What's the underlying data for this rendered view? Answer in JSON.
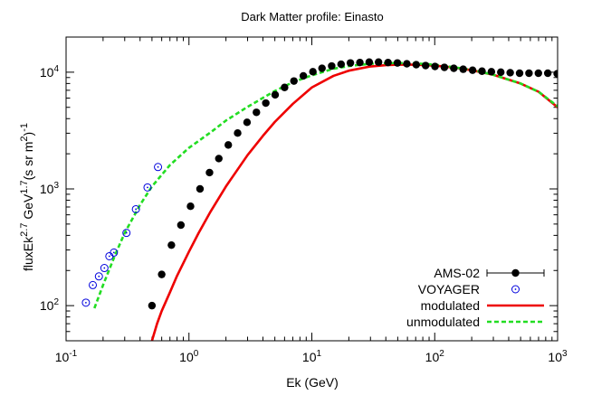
{
  "chart_data": {
    "type": "scatter",
    "title": "Dark Matter profile: Einasto",
    "xlabel": "Ek (GeV)",
    "ylabel_parts": [
      "fluxEk",
      "2.7",
      " GeV",
      "1.7",
      "(s sr m",
      "2",
      ")",
      "-1"
    ],
    "xscale": "log",
    "yscale": "log",
    "xlim": [
      0.1,
      1000
    ],
    "ylim": [
      50,
      20000
    ],
    "x_ticks": [
      {
        "value": 0.1,
        "base": "10",
        "exp": "-1"
      },
      {
        "value": 1,
        "base": "10",
        "exp": "0"
      },
      {
        "value": 10,
        "base": "10",
        "exp": "1"
      },
      {
        "value": 100,
        "base": "10",
        "exp": "2"
      },
      {
        "value": 1000,
        "base": "10",
        "exp": "3"
      }
    ],
    "y_ticks": [
      {
        "value": 100,
        "base": "10",
        "exp": "2"
      },
      {
        "value": 1000,
        "base": "10",
        "exp": "3"
      },
      {
        "value": 10000,
        "base": "10",
        "exp": "4"
      }
    ],
    "grid": false,
    "legend_position": "bottom-right",
    "series": [
      {
        "name": "AMS-02",
        "kind": "points",
        "marker": "filled-circle",
        "color": "#000000",
        "x": [
          0.5,
          0.6,
          0.72,
          0.86,
          1.03,
          1.23,
          1.47,
          1.75,
          2.09,
          2.49,
          2.97,
          3.54,
          4.22,
          5.03,
          6.0,
          7.15,
          8.53,
          10.2,
          12.1,
          14.5,
          17.3,
          20.6,
          24.6,
          29.3,
          34.9,
          41.7,
          49.7,
          59.3,
          70.7,
          84.3,
          100.5,
          119.9,
          143,
          170.5,
          203.3,
          242.5,
          289.2,
          344.9,
          411.3,
          490.5,
          585,
          697.6,
          832,
          992.2
        ],
        "y": [
          100,
          185,
          330,
          490,
          710,
          1000,
          1380,
          1820,
          2380,
          3010,
          3720,
          4530,
          5440,
          6400,
          7400,
          8400,
          9300,
          10100,
          10800,
          11300,
          11700,
          12000,
          12100,
          12200,
          12200,
          12100,
          12000,
          11800,
          11600,
          11400,
          11200,
          11000,
          10800,
          10600,
          10400,
          10200,
          10100,
          10000,
          9900,
          9800,
          9800,
          9800,
          9800,
          9700
        ]
      },
      {
        "name": "VOYAGER",
        "kind": "points",
        "marker": "open-circle-dot",
        "color": "#0000dd",
        "x": [
          0.145,
          0.165,
          0.185,
          0.205,
          0.225,
          0.245,
          0.31,
          0.37,
          0.46,
          0.56
        ],
        "y": [
          106,
          150,
          178,
          210,
          265,
          285,
          420,
          670,
          1030,
          1540
        ]
      },
      {
        "name": "modulated",
        "kind": "line",
        "color": "#ee0000",
        "dash": "",
        "x": [
          0.5,
          0.55,
          0.6,
          0.7,
          0.8,
          1.0,
          1.2,
          1.5,
          2.0,
          3.0,
          4.0,
          5.0,
          7.0,
          10,
          15,
          20,
          30,
          40,
          50,
          70,
          100,
          150,
          200,
          300,
          500,
          700,
          1000
        ],
        "y": [
          50,
          70,
          90,
          130,
          180,
          290,
          420,
          640,
          1050,
          1950,
          2850,
          3750,
          5350,
          7400,
          9300,
          10300,
          11200,
          11500,
          11600,
          11600,
          11400,
          10900,
          10400,
          9500,
          8000,
          6800,
          5000
        ]
      },
      {
        "name": "unmodulated",
        "kind": "line",
        "color": "#22dd22",
        "dash": "5,3",
        "x": [
          0.17,
          0.2,
          0.25,
          0.3,
          0.4,
          0.5,
          0.7,
          1.0,
          1.5,
          2.0,
          3.0,
          5.0,
          7.0,
          10,
          15,
          20,
          30,
          50,
          70,
          100,
          200,
          300,
          500,
          700,
          1000
        ],
        "y": [
          95,
          150,
          270,
          420,
          730,
          1050,
          1600,
          2250,
          3050,
          3850,
          5050,
          6900,
          8200,
          9400,
          10700,
          11300,
          11800,
          12000,
          11900,
          11600,
          10500,
          9500,
          8000,
          6800,
          5100
        ]
      }
    ]
  }
}
